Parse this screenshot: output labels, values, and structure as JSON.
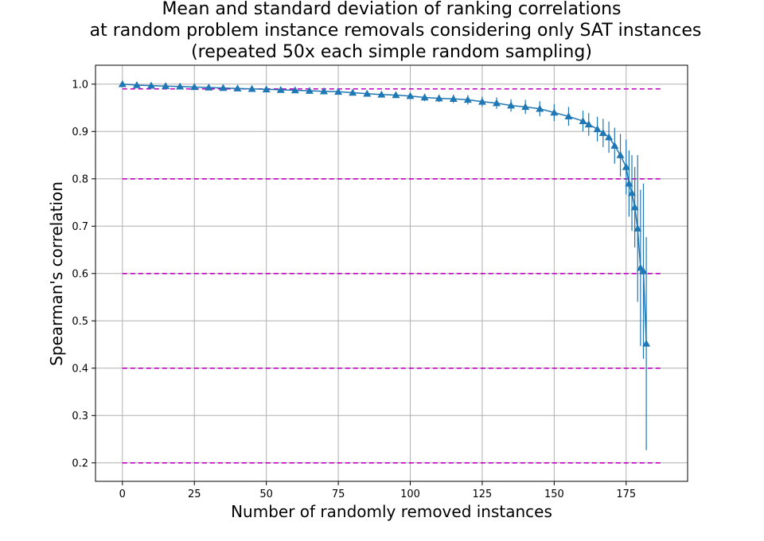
{
  "chart_data": {
    "type": "line",
    "title_lines": [
      "Mean and standard deviation of ranking correlations",
      "at random problem instance removals considering only SAT instances",
      "(repeated 50x each simple random sampling)"
    ],
    "xlabel": "Number of randomly removed instances",
    "ylabel": "Spearman's correlation",
    "xlim": [
      -9.35,
      196.35
    ],
    "ylim": [
      0.161,
      1.04
    ],
    "xticks": [
      0,
      25,
      50,
      75,
      100,
      125,
      150,
      175
    ],
    "yticks": [
      0.2,
      0.3,
      0.4,
      0.5,
      0.6,
      0.7,
      0.8,
      0.9,
      1.0
    ],
    "grid": true,
    "marker": "triangle-up",
    "series_color": "#1f77b4",
    "reference_lines": {
      "y": [
        0.99,
        0.8,
        0.6,
        0.4,
        0.2
      ],
      "x_range": [
        0,
        187
      ],
      "color": "#bf00bf",
      "style": "dashed"
    },
    "series": [
      {
        "x": [
          0,
          5,
          10,
          15,
          20,
          25,
          30,
          35,
          40,
          45,
          50,
          55,
          60,
          65,
          70,
          75,
          80,
          85,
          90,
          95,
          100,
          105,
          110,
          115,
          120,
          125,
          130,
          135,
          140,
          145,
          150,
          155,
          160,
          162,
          165,
          167,
          169,
          171,
          173,
          175,
          176,
          177,
          178,
          179,
          180,
          181,
          182
        ],
        "mean": [
          1.0,
          0.998,
          0.997,
          0.996,
          0.995,
          0.994,
          0.993,
          0.992,
          0.991,
          0.99,
          0.989,
          0.988,
          0.987,
          0.986,
          0.985,
          0.984,
          0.982,
          0.98,
          0.978,
          0.977,
          0.975,
          0.972,
          0.97,
          0.969,
          0.967,
          0.963,
          0.96,
          0.955,
          0.952,
          0.948,
          0.94,
          0.932,
          0.922,
          0.915,
          0.905,
          0.897,
          0.888,
          0.87,
          0.85,
          0.825,
          0.79,
          0.77,
          0.74,
          0.695,
          0.612,
          0.605,
          0.452
        ],
        "std": [
          0.0,
          0.001,
          0.001,
          0.001,
          0.001,
          0.002,
          0.002,
          0.002,
          0.002,
          0.003,
          0.003,
          0.003,
          0.003,
          0.004,
          0.004,
          0.005,
          0.005,
          0.006,
          0.006,
          0.006,
          0.007,
          0.008,
          0.008,
          0.009,
          0.01,
          0.011,
          0.012,
          0.013,
          0.015,
          0.016,
          0.018,
          0.02,
          0.022,
          0.024,
          0.026,
          0.03,
          0.033,
          0.038,
          0.045,
          0.058,
          0.07,
          0.08,
          0.085,
          0.155,
          0.165,
          0.185,
          0.225
        ]
      }
    ]
  }
}
